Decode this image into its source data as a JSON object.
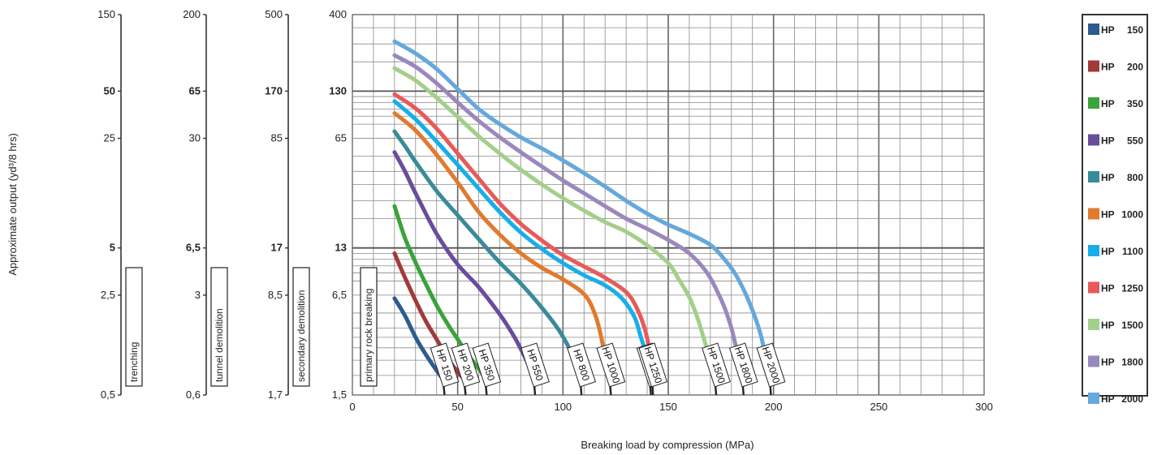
{
  "chart_data": {
    "type": "line",
    "title": "",
    "xlabel": "Breaking load by compression (MPa)",
    "ylabel": "Approximate output (yd³/8 hrs)",
    "xlim": [
      0,
      300
    ],
    "x_ticks": [
      "0",
      "50",
      "100",
      "150",
      "200",
      "250",
      "300"
    ],
    "y_scale": "log",
    "ylim": [
      1.5,
      400
    ],
    "y_ticks": [
      {
        "value": 400,
        "label": "400",
        "bold": false
      },
      {
        "value": 130,
        "label": "130",
        "bold": true
      },
      {
        "value": 65,
        "label": "65",
        "bold": false
      },
      {
        "value": 13,
        "label": "13",
        "bold": true
      },
      {
        "value": 6.5,
        "label": "6,5",
        "bold": false
      },
      {
        "value": 1.5,
        "label": "1,5",
        "bold": false
      }
    ],
    "grid": true,
    "legend_position": "right",
    "application_scales": [
      {
        "name": "trenching",
        "ticks": [
          {
            "label": "150",
            "bold": false
          },
          {
            "label": "50",
            "bold": true
          },
          {
            "label": "25",
            "bold": false
          },
          {
            "label": "5",
            "bold": true
          },
          {
            "label": "2,5",
            "bold": false
          },
          {
            "label": "0,5",
            "bold": false
          }
        ]
      },
      {
        "name": "tunnel demolition",
        "ticks": [
          {
            "label": "200",
            "bold": false
          },
          {
            "label": "65",
            "bold": true
          },
          {
            "label": "30",
            "bold": false
          },
          {
            "label": "6,5",
            "bold": true
          },
          {
            "label": "3",
            "bold": false
          },
          {
            "label": "0,6",
            "bold": false
          }
        ]
      },
      {
        "name": "secondary demolition",
        "ticks": [
          {
            "label": "500",
            "bold": false
          },
          {
            "label": "170",
            "bold": true
          },
          {
            "label": "85",
            "bold": false
          },
          {
            "label": "17",
            "bold": true
          },
          {
            "label": "8,5",
            "bold": false
          },
          {
            "label": "1,7",
            "bold": false
          }
        ]
      },
      {
        "name": "primary rock breaking",
        "ticks": []
      }
    ],
    "series": [
      {
        "name": "HP 150",
        "label": "HP 150",
        "color": "#2e5b8e",
        "points": [
          [
            20,
            6.2
          ],
          [
            25,
            4.8
          ],
          [
            30,
            3.5
          ],
          [
            35,
            2.7
          ],
          [
            40,
            2.15
          ],
          [
            43,
            1.9
          ]
        ]
      },
      {
        "name": "HP 200",
        "label": "HP 200",
        "color": "#a23a3a",
        "points": [
          [
            20,
            12
          ],
          [
            25,
            8.4
          ],
          [
            30,
            6.0
          ],
          [
            35,
            4.4
          ],
          [
            40,
            3.4
          ],
          [
            45,
            2.6
          ],
          [
            50,
            2.1
          ],
          [
            53,
            1.9
          ]
        ]
      },
      {
        "name": "HP 350",
        "label": "HP 350",
        "color": "#3aa33a",
        "points": [
          [
            20,
            24
          ],
          [
            25,
            15
          ],
          [
            30,
            10.5
          ],
          [
            35,
            7.6
          ],
          [
            40,
            5.6
          ],
          [
            45,
            4.3
          ],
          [
            50,
            3.4
          ],
          [
            55,
            2.7
          ],
          [
            60,
            2.2
          ],
          [
            63,
            1.95
          ]
        ]
      },
      {
        "name": "HP 550",
        "label": "HP 550",
        "color": "#6a4c9c",
        "points": [
          [
            20,
            53
          ],
          [
            25,
            40
          ],
          [
            30,
            29
          ],
          [
            40,
            16
          ],
          [
            50,
            10.2
          ],
          [
            60,
            7.3
          ],
          [
            70,
            4.9
          ],
          [
            77,
            3.5
          ],
          [
            82,
            2.6
          ],
          [
            86,
            2.0
          ]
        ]
      },
      {
        "name": "HP 800",
        "label": "HP 800",
        "color": "#3a8a9a",
        "points": [
          [
            20,
            72
          ],
          [
            25,
            58
          ],
          [
            30,
            46
          ],
          [
            40,
            30
          ],
          [
            50,
            21
          ],
          [
            60,
            14.8
          ],
          [
            70,
            10.5
          ],
          [
            80,
            7.7
          ],
          [
            90,
            5.4
          ],
          [
            98,
            3.9
          ],
          [
            104,
            2.8
          ],
          [
            108,
            2.1
          ]
        ]
      },
      {
        "name": "HP 1000",
        "label": "HP 1000",
        "color": "#e07b2e",
        "points": [
          [
            20,
            94
          ],
          [
            30,
            73
          ],
          [
            40,
            51
          ],
          [
            50,
            34
          ],
          [
            60,
            22
          ],
          [
            70,
            15.8
          ],
          [
            80,
            12
          ],
          [
            90,
            9.7
          ],
          [
            100,
            8.2
          ],
          [
            110,
            6.6
          ],
          [
            115,
            5.0
          ],
          [
            118,
            3.6
          ],
          [
            120,
            2.6
          ],
          [
            122,
            2.05
          ]
        ]
      },
      {
        "name": "HP 1100",
        "label": "HP 1100",
        "color": "#17aee8",
        "points": [
          [
            20,
            112
          ],
          [
            30,
            86
          ],
          [
            40,
            62
          ],
          [
            50,
            44
          ],
          [
            60,
            31
          ],
          [
            70,
            22
          ],
          [
            80,
            16.3
          ],
          [
            90,
            12.8
          ],
          [
            100,
            10.4
          ],
          [
            110,
            8.7
          ],
          [
            120,
            7.5
          ],
          [
            128,
            6.2
          ],
          [
            134,
            4.7
          ],
          [
            137,
            3.5
          ],
          [
            140,
            2.6
          ],
          [
            141,
            2.05
          ]
        ]
      },
      {
        "name": "HP 1250",
        "label": "HP 1250",
        "color": "#e85a5a",
        "points": [
          [
            20,
            124
          ],
          [
            30,
            101
          ],
          [
            40,
            75
          ],
          [
            50,
            52
          ],
          [
            60,
            36
          ],
          [
            70,
            25
          ],
          [
            80,
            18.5
          ],
          [
            90,
            14.5
          ],
          [
            100,
            11.7
          ],
          [
            110,
            9.9
          ],
          [
            120,
            8.4
          ],
          [
            130,
            6.8
          ],
          [
            135,
            5.4
          ],
          [
            139,
            3.9
          ],
          [
            141,
            2.9
          ],
          [
            142,
            2.2
          ]
        ]
      },
      {
        "name": "HP 1500",
        "label": "HP 1500",
        "color": "#a3cf8a",
        "points": [
          [
            20,
            182
          ],
          [
            30,
            152
          ],
          [
            40,
            118
          ],
          [
            50,
            89
          ],
          [
            60,
            67
          ],
          [
            70,
            52
          ],
          [
            80,
            41
          ],
          [
            90,
            33
          ],
          [
            100,
            27
          ],
          [
            110,
            22.5
          ],
          [
            120,
            19
          ],
          [
            130,
            16.5
          ],
          [
            140,
            13.5
          ],
          [
            150,
            10.4
          ],
          [
            155,
            8.2
          ],
          [
            160,
            6.3
          ],
          [
            164,
            4.6
          ],
          [
            167,
            3.4
          ],
          [
            170,
            2.5
          ],
          [
            172,
            2.0
          ]
        ]
      },
      {
        "name": "HP 1800",
        "label": "HP 1800",
        "color": "#9a88bd",
        "points": [
          [
            20,
            220
          ],
          [
            30,
            186
          ],
          [
            40,
            146
          ],
          [
            50,
            110
          ],
          [
            60,
            84
          ],
          [
            70,
            66
          ],
          [
            80,
            53
          ],
          [
            90,
            43
          ],
          [
            100,
            35
          ],
          [
            110,
            29
          ],
          [
            120,
            24
          ],
          [
            130,
            20
          ],
          [
            140,
            17.2
          ],
          [
            150,
            14.6
          ],
          [
            160,
            12
          ],
          [
            168,
            9.2
          ],
          [
            173,
            7.0
          ],
          [
            177,
            5.3
          ],
          [
            180,
            4.0
          ],
          [
            182,
            3.1
          ],
          [
            184,
            2.4
          ],
          [
            185,
            2.0
          ]
        ]
      },
      {
        "name": "HP 2000",
        "label": "HP 2000",
        "color": "#65a8dc",
        "points": [
          [
            20,
            270
          ],
          [
            30,
            226
          ],
          [
            40,
            180
          ],
          [
            50,
            134
          ],
          [
            60,
            100
          ],
          [
            70,
            80
          ],
          [
            80,
            66
          ],
          [
            90,
            56
          ],
          [
            100,
            47
          ],
          [
            110,
            39
          ],
          [
            120,
            32
          ],
          [
            130,
            26
          ],
          [
            140,
            21.5
          ],
          [
            150,
            18.3
          ],
          [
            160,
            16
          ],
          [
            170,
            13.6
          ],
          [
            176,
            11.3
          ],
          [
            182,
            8.8
          ],
          [
            187,
            6.5
          ],
          [
            191,
            4.8
          ],
          [
            194,
            3.6
          ],
          [
            196,
            2.7
          ],
          [
            198,
            2.1
          ]
        ]
      }
    ]
  },
  "legend": {
    "items": [
      {
        "prefix": "HP",
        "number": "150",
        "color": "#2e5b8e"
      },
      {
        "prefix": "HP",
        "number": "200",
        "color": "#a23a3a"
      },
      {
        "prefix": "HP",
        "number": "350",
        "color": "#3aa33a"
      },
      {
        "prefix": "HP",
        "number": "550",
        "color": "#6a4c9c"
      },
      {
        "prefix": "HP",
        "number": "800",
        "color": "#3a8a9a"
      },
      {
        "prefix": "HP",
        "number": "1000",
        "color": "#e07b2e"
      },
      {
        "prefix": "HP",
        "number": "1100",
        "color": "#17aee8"
      },
      {
        "prefix": "HP",
        "number": "1250",
        "color": "#e85a5a"
      },
      {
        "prefix": "HP",
        "number": "1500",
        "color": "#a3cf8a"
      },
      {
        "prefix": "HP",
        "number": "1800",
        "color": "#9a88bd"
      },
      {
        "prefix": "HP",
        "number": "2000",
        "color": "#65a8dc"
      }
    ]
  }
}
